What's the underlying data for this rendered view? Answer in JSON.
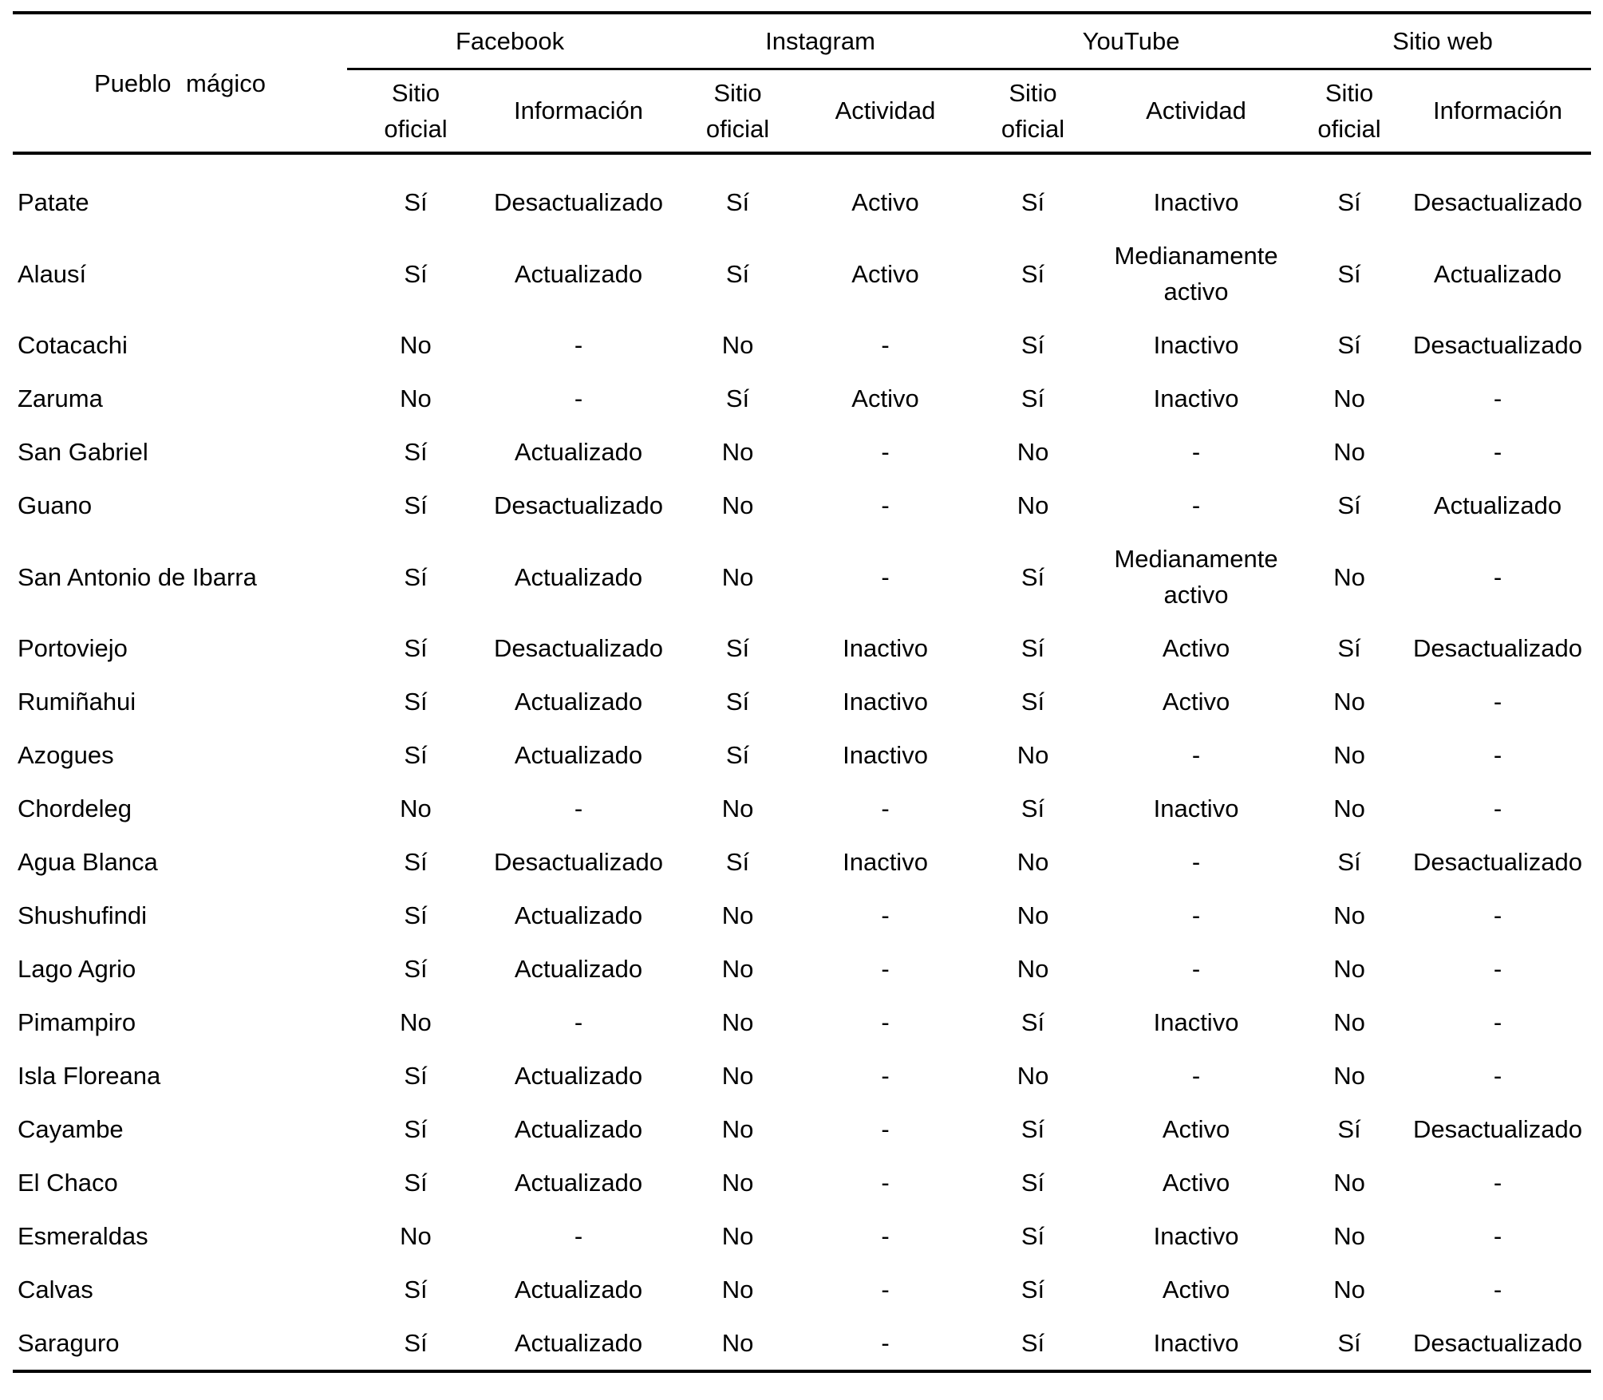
{
  "text_color": "#000000",
  "background_color": "#ffffff",
  "table": {
    "row_header_label": "Pueblo mágico",
    "groups": [
      {
        "label": "Facebook",
        "sub": [
          "Sitio oficial",
          "Información"
        ]
      },
      {
        "label": "Instagram",
        "sub": [
          "Sitio oficial",
          "Actividad"
        ]
      },
      {
        "label": "YouTube",
        "sub": [
          "Sitio oficial",
          "Actividad"
        ]
      },
      {
        "label": "Sitio web",
        "sub": [
          "Sitio oficial",
          "Información"
        ]
      }
    ],
    "rows": [
      {
        "name": "Patate",
        "cells": [
          "Sí",
          "Desactualizado",
          "Sí",
          "Activo",
          "Sí",
          "Inactivo",
          "Sí",
          "Desactualizado"
        ]
      },
      {
        "name": "Alausí",
        "cells": [
          "Sí",
          "Actualizado",
          "Sí",
          "Activo",
          "Sí",
          "Medianamente activo",
          "Sí",
          "Actualizado"
        ]
      },
      {
        "name": "Cotacachi",
        "cells": [
          "No",
          "-",
          "No",
          "-",
          "Sí",
          "Inactivo",
          "Sí",
          "Desactualizado"
        ]
      },
      {
        "name": "Zaruma",
        "cells": [
          "No",
          "-",
          "Sí",
          "Activo",
          "Sí",
          "Inactivo",
          "No",
          "-"
        ]
      },
      {
        "name": "San Gabriel",
        "cells": [
          "Sí",
          "Actualizado",
          "No",
          "-",
          "No",
          "-",
          "No",
          "-"
        ]
      },
      {
        "name": "Guano",
        "cells": [
          "Sí",
          "Desactualizado",
          "No",
          "-",
          "No",
          "-",
          "Sí",
          "Actualizado"
        ]
      },
      {
        "name": "San Antonio de Ibarra",
        "cells": [
          "Sí",
          "Actualizado",
          "No",
          "-",
          "Sí",
          "Medianamente activo",
          "No",
          "-"
        ]
      },
      {
        "name": "Portoviejo",
        "cells": [
          "Sí",
          "Desactualizado",
          "Sí",
          "Inactivo",
          "Sí",
          "Activo",
          "Sí",
          "Desactualizado"
        ]
      },
      {
        "name": "Rumiñahui",
        "cells": [
          "Sí",
          "Actualizado",
          "Sí",
          "Inactivo",
          "Sí",
          "Activo",
          "No",
          "-"
        ]
      },
      {
        "name": "Azogues",
        "cells": [
          "Sí",
          "Actualizado",
          "Sí",
          "Inactivo",
          "No",
          "-",
          "No",
          "-"
        ]
      },
      {
        "name": "Chordeleg",
        "cells": [
          "No",
          "-",
          "No",
          "-",
          "Sí",
          "Inactivo",
          "No",
          "-"
        ]
      },
      {
        "name": "Agua Blanca",
        "cells": [
          "Sí",
          "Desactualizado",
          "Sí",
          "Inactivo",
          "No",
          "-",
          "Sí",
          "Desactualizado"
        ]
      },
      {
        "name": "Shushufindi",
        "cells": [
          "Sí",
          "Actualizado",
          "No",
          "-",
          "No",
          "-",
          "No",
          "-"
        ]
      },
      {
        "name": "Lago Agrio",
        "cells": [
          "Sí",
          "Actualizado",
          "No",
          "-",
          "No",
          "-",
          "No",
          "-"
        ]
      },
      {
        "name": "Pimampiro",
        "cells": [
          "No",
          "-",
          "No",
          "-",
          "Sí",
          "Inactivo",
          "No",
          "-"
        ]
      },
      {
        "name": "Isla Floreana",
        "cells": [
          "Sí",
          "Actualizado",
          "No",
          "-",
          "No",
          "-",
          "No",
          "-"
        ]
      },
      {
        "name": "Cayambe",
        "cells": [
          "Sí",
          "Actualizado",
          "No",
          "-",
          "Sí",
          "Activo",
          "Sí",
          "Desactualizado"
        ]
      },
      {
        "name": "El Chaco",
        "cells": [
          "Sí",
          "Actualizado",
          "No",
          "-",
          "Sí",
          "Activo",
          "No",
          "-"
        ]
      },
      {
        "name": "Esmeraldas",
        "cells": [
          "No",
          "-",
          "No",
          "-",
          "Sí",
          "Inactivo",
          "No",
          "-"
        ]
      },
      {
        "name": "Calvas",
        "cells": [
          "Sí",
          "Actualizado",
          "No",
          "-",
          "Sí",
          "Activo",
          "No",
          "-"
        ]
      },
      {
        "name": "Saraguro",
        "cells": [
          "Sí",
          "Actualizado",
          "No",
          "-",
          "Sí",
          "Inactivo",
          "Sí",
          "Desactualizado"
        ]
      }
    ]
  }
}
